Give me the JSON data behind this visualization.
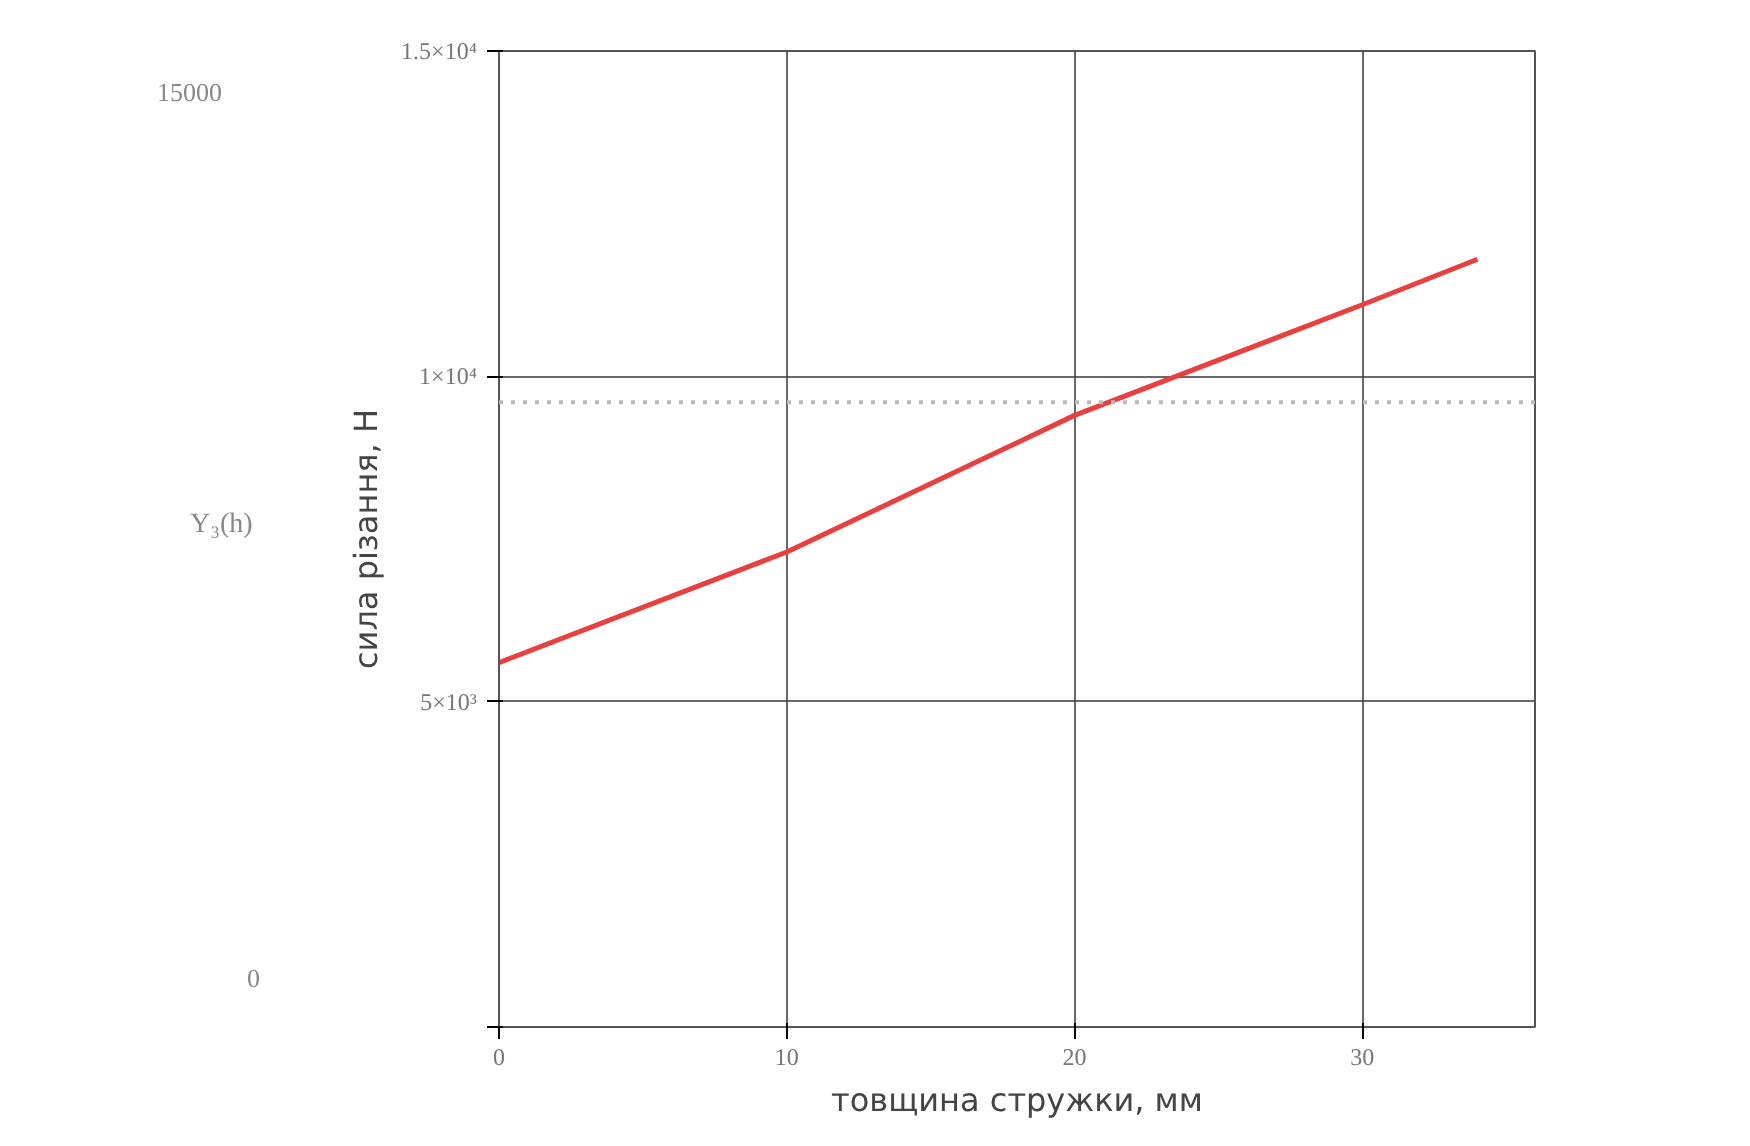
{
  "chart_data": {
    "type": "line",
    "xlabel": "товщина стружки, мм",
    "ylabel": "сила різання, Н",
    "x": [
      0,
      10,
      20,
      30,
      34
    ],
    "series": [
      {
        "name": "Y₃(h)",
        "color": "#e8403f",
        "values": [
          5600,
          7300,
          9400,
          11100,
          11800
        ]
      }
    ],
    "xlim": [
      0,
      36
    ],
    "ylim": [
      0,
      15000
    ],
    "xticks": [
      0,
      10,
      20,
      30
    ],
    "yticks": [
      {
        "value": 0,
        "label": null
      },
      {
        "value": 5000,
        "label": "5×10³"
      },
      {
        "value": 10000,
        "label": "1×10⁴"
      },
      {
        "value": 15000,
        "label": "1.5×10⁴"
      }
    ],
    "ref_lines": [
      {
        "axis": "y",
        "value": 9600,
        "color": "#bbbbbb",
        "line_style": "dotted"
      }
    ],
    "annotations": [
      "15000",
      "0"
    ],
    "grid": true,
    "legend": "left",
    "marker": "none",
    "line_style": "solid"
  }
}
